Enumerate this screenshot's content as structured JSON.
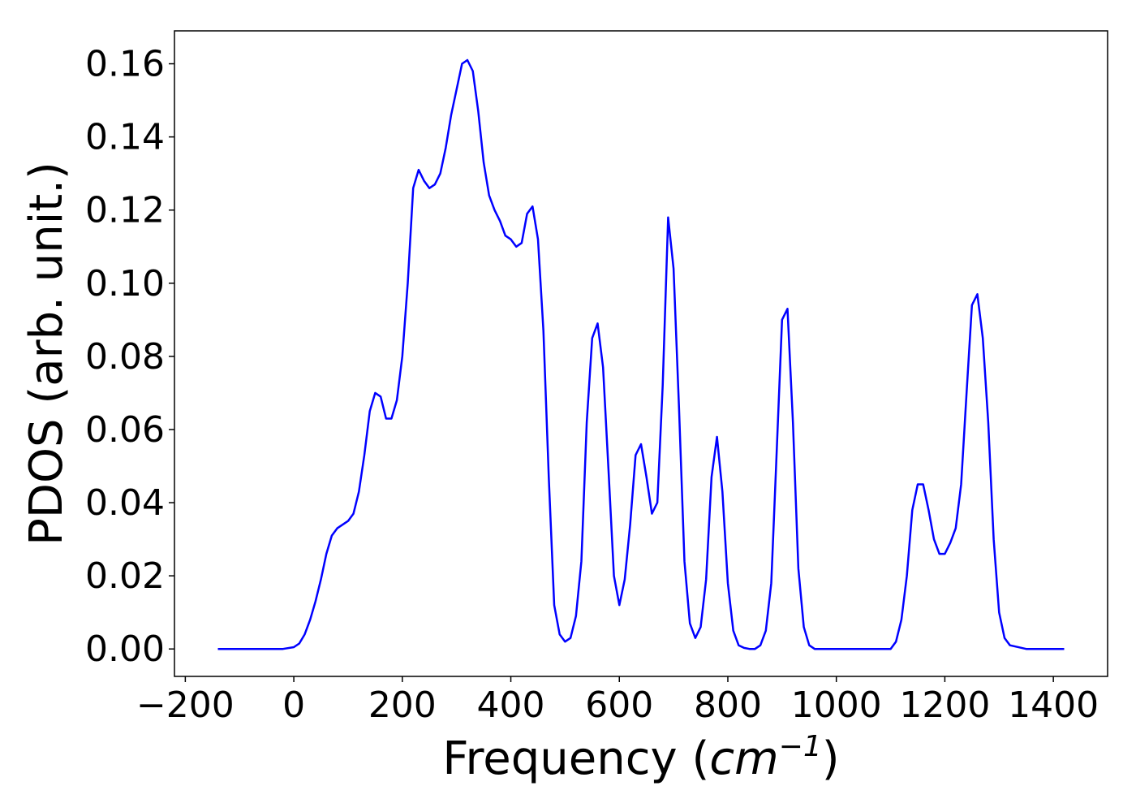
{
  "chart_data": {
    "type": "line",
    "title": "",
    "xlabel_main": "Frequency (",
    "xlabel_unit": "cm",
    "xlabel_exp": "−1",
    "xlabel_close": ")",
    "ylabel": "PDOS (arb. unit.)",
    "xlim": [
      -220,
      1500
    ],
    "ylim": [
      -0.0075,
      0.169
    ],
    "grid": false,
    "line_color": "#0000ff",
    "xticks": [
      -200,
      0,
      200,
      400,
      600,
      800,
      1000,
      1200,
      1400
    ],
    "xtick_labels": [
      "−200",
      "0",
      "200",
      "400",
      "600",
      "800",
      "1000",
      "1200",
      "1400"
    ],
    "yticks": [
      0.0,
      0.02,
      0.04,
      0.06,
      0.08,
      0.1,
      0.12,
      0.14,
      0.16
    ],
    "ytick_labels": [
      "0.00",
      "0.02",
      "0.04",
      "0.06",
      "0.08",
      "0.10",
      "0.12",
      "0.14",
      "0.16"
    ],
    "series": [
      {
        "x": [
          -140,
          -100,
          -60,
          -20,
          0,
          10,
          20,
          30,
          40,
          50,
          60,
          70,
          80,
          90,
          100,
          110,
          120,
          130,
          140,
          150,
          160,
          170,
          180,
          190,
          200,
          210,
          220,
          230,
          240,
          250,
          260,
          270,
          280,
          290,
          300,
          310,
          320,
          330,
          340,
          350,
          360,
          370,
          380,
          390,
          400,
          410,
          420,
          430,
          440,
          450,
          460,
          470,
          480,
          490,
          500,
          510,
          520,
          530,
          540,
          550,
          560,
          570,
          580,
          590,
          600,
          610,
          620,
          630,
          640,
          650,
          660,
          670,
          680,
          690,
          700,
          710,
          720,
          730,
          740,
          750,
          760,
          770,
          780,
          790,
          800,
          810,
          820,
          830,
          840,
          850,
          860,
          870,
          880,
          890,
          900,
          910,
          920,
          930,
          940,
          950,
          960,
          1000,
          1050,
          1100,
          1110,
          1120,
          1130,
          1140,
          1150,
          1160,
          1170,
          1180,
          1190,
          1200,
          1210,
          1220,
          1230,
          1240,
          1250,
          1260,
          1270,
          1280,
          1290,
          1300,
          1310,
          1320,
          1350,
          1400,
          1420
        ],
        "y": [
          0.0,
          0.0,
          0.0,
          0.0,
          0.0005,
          0.0015,
          0.004,
          0.008,
          0.013,
          0.019,
          0.026,
          0.031,
          0.033,
          0.034,
          0.035,
          0.037,
          0.043,
          0.053,
          0.065,
          0.07,
          0.069,
          0.063,
          0.063,
          0.068,
          0.08,
          0.1,
          0.126,
          0.131,
          0.128,
          0.126,
          0.127,
          0.13,
          0.137,
          0.146,
          0.153,
          0.16,
          0.161,
          0.158,
          0.147,
          0.133,
          0.124,
          0.12,
          0.117,
          0.113,
          0.112,
          0.11,
          0.111,
          0.119,
          0.121,
          0.112,
          0.087,
          0.047,
          0.012,
          0.004,
          0.002,
          0.003,
          0.009,
          0.024,
          0.062,
          0.085,
          0.089,
          0.077,
          0.049,
          0.02,
          0.012,
          0.019,
          0.034,
          0.053,
          0.056,
          0.047,
          0.037,
          0.04,
          0.072,
          0.118,
          0.104,
          0.066,
          0.024,
          0.007,
          0.003,
          0.006,
          0.019,
          0.047,
          0.058,
          0.043,
          0.018,
          0.005,
          0.001,
          0.0003,
          0.0,
          0.0,
          0.001,
          0.005,
          0.018,
          0.054,
          0.09,
          0.093,
          0.062,
          0.022,
          0.006,
          0.001,
          0.0,
          0.0,
          0.0,
          0.0,
          0.002,
          0.008,
          0.02,
          0.038,
          0.045,
          0.045,
          0.038,
          0.03,
          0.026,
          0.026,
          0.029,
          0.033,
          0.045,
          0.07,
          0.094,
          0.097,
          0.085,
          0.062,
          0.03,
          0.01,
          0.003,
          0.001,
          0.0,
          0.0,
          0.0
        ]
      }
    ]
  }
}
